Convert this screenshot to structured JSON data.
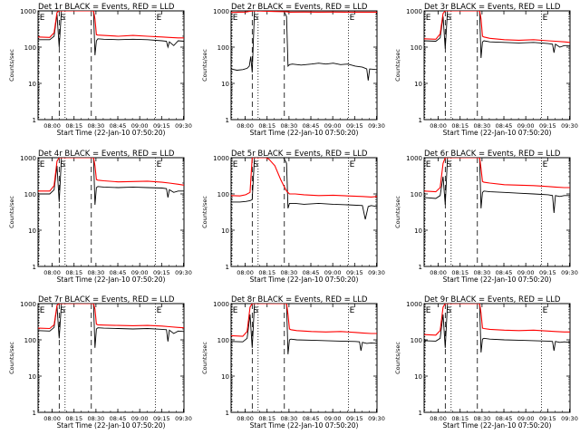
{
  "colors": {
    "events": "#000000",
    "lld": "#ff0000",
    "background": "#ffffff"
  },
  "common": {
    "ylabel": "Counts/sec",
    "xlabel": "Start Time (22-Jan-10 07:50:20)",
    "x_tick_labels": [
      "08:00",
      "08:15",
      "08:30",
      "08:45",
      "09:00",
      "09:15",
      "09:30"
    ],
    "x_tick_minutes": [
      9.67,
      24.67,
      39.67,
      54.67,
      69.67,
      84.67,
      99.67
    ],
    "y_tick_labels": [
      "1",
      "10",
      "100",
      "1000"
    ],
    "y_tick_values": [
      1,
      10,
      100,
      1000
    ],
    "markers": [
      {
        "label": "E",
        "minute": 0.5,
        "style": "dotted"
      },
      {
        "label": "S",
        "minute": 14.5,
        "style": "dashed"
      },
      {
        "label": "",
        "minute": 18.5,
        "style": "dotted"
      },
      {
        "label": "",
        "minute": 36.5,
        "style": "dashed"
      },
      {
        "label": "E",
        "minute": 80.5,
        "style": "dotted"
      }
    ]
  },
  "chart_data": [
    {
      "type": "line",
      "title": "Det 1r BLACK = Events, RED = LLD",
      "xlim": [
        0,
        100
      ],
      "ylim": [
        1,
        1000
      ],
      "yscale": "log",
      "series": [
        {
          "name": "Events",
          "x": [
            0,
            8,
            11,
            13,
            14.5,
            16,
            18,
            38,
            39,
            40,
            41,
            45,
            55,
            65,
            75,
            85,
            88,
            89,
            90,
            93,
            96,
            100
          ],
          "y": [
            160,
            160,
            200,
            800,
            100,
            1000,
            1000,
            1000,
            60,
            150,
            170,
            165,
            160,
            165,
            160,
            150,
            145,
            100,
            140,
            110,
            150,
            145
          ]
        },
        {
          "name": "LLD",
          "x": [
            0,
            8,
            11,
            13,
            14.5,
            16,
            18,
            38,
            39,
            40,
            41,
            45,
            55,
            65,
            75,
            85,
            90,
            96,
            100
          ],
          "y": [
            190,
            185,
            250,
            900,
            1000,
            1000,
            1000,
            1000,
            600,
            220,
            215,
            210,
            200,
            210,
            200,
            190,
            185,
            180,
            180
          ]
        }
      ]
    },
    {
      "type": "line",
      "title": "Det 2r BLACK = Events, RED = LLD",
      "xlim": [
        0,
        100
      ],
      "ylim": [
        1,
        1000
      ],
      "yscale": "log",
      "series": [
        {
          "name": "Events",
          "x": [
            0,
            4,
            8,
            11,
            12.5,
            13.5,
            14.5,
            16,
            18,
            36,
            38,
            39,
            40,
            42,
            48,
            55,
            60,
            65,
            70,
            75,
            80,
            85,
            90,
            93,
            94,
            95,
            100
          ],
          "y": [
            25,
            23,
            24,
            26,
            30,
            55,
            20,
            1000,
            1000,
            1000,
            700,
            30,
            33,
            34,
            32,
            34,
            36,
            34,
            36,
            33,
            34,
            30,
            28,
            25,
            12,
            25,
            24
          ]
        },
        {
          "name": "LLD",
          "x": [
            0,
            5,
            10,
            13,
            14.5,
            16,
            20,
            30,
            38,
            40,
            50,
            60,
            70,
            80,
            90,
            100
          ],
          "y": [
            900,
            920,
            930,
            980,
            990,
            1000,
            990,
            960,
            950,
            920,
            930,
            920,
            930,
            925,
            920,
            920
          ]
        }
      ]
    },
    {
      "type": "line",
      "title": "Det 3r BLACK = Events, RED = LLD",
      "xlim": [
        0,
        100
      ],
      "ylim": [
        1,
        1000
      ],
      "yscale": "log",
      "series": [
        {
          "name": "Events",
          "x": [
            0,
            8,
            11,
            13,
            14.5,
            16,
            18,
            38,
            39,
            40,
            41,
            45,
            55,
            65,
            75,
            85,
            88,
            89,
            90,
            93,
            96,
            100
          ],
          "y": [
            150,
            145,
            180,
            700,
            90,
            1000,
            1000,
            1000,
            50,
            140,
            150,
            140,
            135,
            130,
            135,
            125,
            120,
            70,
            120,
            100,
            110,
            110
          ]
        },
        {
          "name": "LLD",
          "x": [
            0,
            8,
            11,
            13,
            14.5,
            16,
            18,
            38,
            39,
            40,
            41,
            45,
            55,
            65,
            75,
            85,
            90,
            96,
            100
          ],
          "y": [
            170,
            165,
            230,
            850,
            1000,
            1000,
            1000,
            1000,
            600,
            200,
            190,
            175,
            160,
            155,
            160,
            150,
            145,
            140,
            135
          ]
        }
      ]
    },
    {
      "type": "line",
      "title": "Det 4r BLACK = Events, RED = LLD",
      "xlim": [
        0,
        100
      ],
      "ylim": [
        1,
        1000
      ],
      "yscale": "log",
      "series": [
        {
          "name": "Events",
          "x": [
            0,
            8,
            11,
            13,
            14.5,
            16,
            18,
            38,
            39,
            40,
            41,
            45,
            55,
            65,
            75,
            85,
            88,
            89,
            90,
            93,
            96,
            100
          ],
          "y": [
            100,
            100,
            130,
            600,
            60,
            1000,
            1000,
            1000,
            50,
            150,
            160,
            155,
            150,
            155,
            150,
            145,
            140,
            80,
            130,
            110,
            120,
            120
          ]
        },
        {
          "name": "LLD",
          "x": [
            0,
            8,
            11,
            13,
            14.5,
            16,
            18,
            38,
            39,
            40,
            41,
            45,
            55,
            65,
            75,
            85,
            90,
            96,
            100
          ],
          "y": [
            120,
            120,
            170,
            800,
            1000,
            1000,
            1000,
            1000,
            600,
            250,
            240,
            230,
            215,
            220,
            225,
            210,
            200,
            185,
            175
          ]
        }
      ]
    },
    {
      "type": "line",
      "title": "Det 5r BLACK = Events, RED = LLD",
      "xlim": [
        0,
        100
      ],
      "ylim": [
        1,
        1000
      ],
      "yscale": "log",
      "series": [
        {
          "name": "Events",
          "x": [
            0,
            6,
            10,
            13,
            14.5,
            16,
            20,
            22,
            24,
            26,
            32,
            36,
            38,
            39,
            40,
            44,
            50,
            60,
            70,
            80,
            90,
            92,
            94,
            96,
            100
          ],
          "y": [
            60,
            60,
            62,
            65,
            70,
            1000,
            1000,
            1000,
            1000,
            1000,
            1000,
            1000,
            700,
            40,
            55,
            55,
            52,
            55,
            52,
            50,
            48,
            20,
            45,
            48,
            45
          ]
        },
        {
          "name": "LLD",
          "x": [
            0,
            6,
            10,
            13,
            14.5,
            16,
            20,
            22,
            24,
            26,
            30,
            34,
            36,
            38,
            40,
            44,
            50,
            60,
            70,
            80,
            90,
            96,
            100
          ],
          "y": [
            90,
            88,
            95,
            110,
            1000,
            1000,
            1000,
            1000,
            1000,
            900,
            600,
            250,
            170,
            120,
            100,
            100,
            95,
            90,
            92,
            88,
            85,
            82,
            85
          ]
        }
      ]
    },
    {
      "type": "line",
      "title": "Det 6r BLACK = Events, RED = LLD",
      "xlim": [
        0,
        100
      ],
      "ylim": [
        1,
        1000
      ],
      "yscale": "log",
      "series": [
        {
          "name": "Events",
          "x": [
            0,
            8,
            11,
            13,
            14.5,
            16,
            18,
            38,
            39,
            40,
            41,
            45,
            55,
            65,
            75,
            85,
            88,
            89,
            90,
            93,
            96,
            100
          ],
          "y": [
            80,
            75,
            90,
            300,
            50,
            1000,
            1000,
            1000,
            40,
            110,
            120,
            115,
            110,
            105,
            100,
            95,
            90,
            30,
            90,
            85,
            90,
            90
          ]
        },
        {
          "name": "LLD",
          "x": [
            0,
            8,
            11,
            13,
            14.5,
            16,
            18,
            38,
            39,
            40,
            41,
            45,
            55,
            65,
            75,
            85,
            90,
            96,
            100
          ],
          "y": [
            120,
            115,
            150,
            700,
            1000,
            1000,
            1000,
            1000,
            500,
            220,
            210,
            200,
            180,
            175,
            170,
            160,
            155,
            150,
            150
          ]
        }
      ]
    },
    {
      "type": "line",
      "title": "Det 7r BLACK = Events, RED = LLD",
      "xlim": [
        0,
        100
      ],
      "ylim": [
        1,
        1000
      ],
      "yscale": "log",
      "series": [
        {
          "name": "Events",
          "x": [
            0,
            8,
            11,
            13,
            14.5,
            16,
            18,
            38,
            39,
            40,
            41,
            45,
            55,
            65,
            75,
            85,
            88,
            89,
            90,
            93,
            96,
            100
          ],
          "y": [
            180,
            175,
            220,
            850,
            110,
            1000,
            1000,
            1000,
            60,
            200,
            215,
            210,
            205,
            200,
            205,
            195,
            190,
            90,
            185,
            150,
            175,
            170
          ]
        },
        {
          "name": "LLD",
          "x": [
            0,
            8,
            11,
            13,
            14.5,
            16,
            18,
            38,
            39,
            40,
            41,
            45,
            55,
            65,
            75,
            85,
            90,
            96,
            100
          ],
          "y": [
            210,
            205,
            260,
            900,
            1000,
            1000,
            1000,
            1000,
            700,
            270,
            260,
            255,
            250,
            245,
            250,
            240,
            230,
            220,
            215
          ]
        }
      ]
    },
    {
      "type": "line",
      "title": "Det 8r BLACK = Events, RED = LLD",
      "xlim": [
        0,
        100
      ],
      "ylim": [
        1,
        1000
      ],
      "yscale": "log",
      "series": [
        {
          "name": "Events",
          "x": [
            0,
            8,
            11,
            13,
            14.5,
            16,
            18,
            38,
            39,
            40,
            41,
            45,
            55,
            65,
            75,
            85,
            88,
            89,
            90,
            93,
            96,
            100
          ],
          "y": [
            90,
            88,
            110,
            500,
            60,
            1000,
            1000,
            1000,
            40,
            100,
            105,
            100,
            98,
            95,
            92,
            90,
            88,
            50,
            85,
            80,
            82,
            80
          ]
        },
        {
          "name": "LLD",
          "x": [
            0,
            8,
            11,
            13,
            14.5,
            16,
            18,
            38,
            39,
            40,
            41,
            45,
            55,
            65,
            75,
            85,
            90,
            96,
            100
          ],
          "y": [
            130,
            125,
            170,
            800,
            1000,
            1000,
            1000,
            1000,
            500,
            200,
            190,
            180,
            170,
            165,
            170,
            160,
            155,
            150,
            150
          ]
        }
      ]
    },
    {
      "type": "line",
      "title": "Det 9r BLACK = Events, RED = LLD",
      "xlim": [
        0,
        100
      ],
      "ylim": [
        1,
        1000
      ],
      "yscale": "log",
      "series": [
        {
          "name": "Events",
          "x": [
            0,
            8,
            11,
            13,
            14.5,
            16,
            18,
            38,
            39,
            40,
            41,
            45,
            55,
            65,
            75,
            85,
            88,
            89,
            90,
            93,
            96,
            100
          ],
          "y": [
            95,
            92,
            110,
            500,
            60,
            1000,
            1000,
            1000,
            45,
            105,
            110,
            105,
            100,
            98,
            95,
            92,
            90,
            50,
            90,
            85,
            88,
            85
          ]
        },
        {
          "name": "LLD",
          "x": [
            0,
            8,
            11,
            13,
            14.5,
            16,
            18,
            38,
            39,
            40,
            41,
            45,
            55,
            65,
            75,
            85,
            90,
            96,
            100
          ],
          "y": [
            140,
            135,
            180,
            800,
            1000,
            1000,
            1000,
            1000,
            550,
            210,
            205,
            195,
            185,
            180,
            185,
            175,
            170,
            165,
            165
          ]
        }
      ]
    }
  ]
}
